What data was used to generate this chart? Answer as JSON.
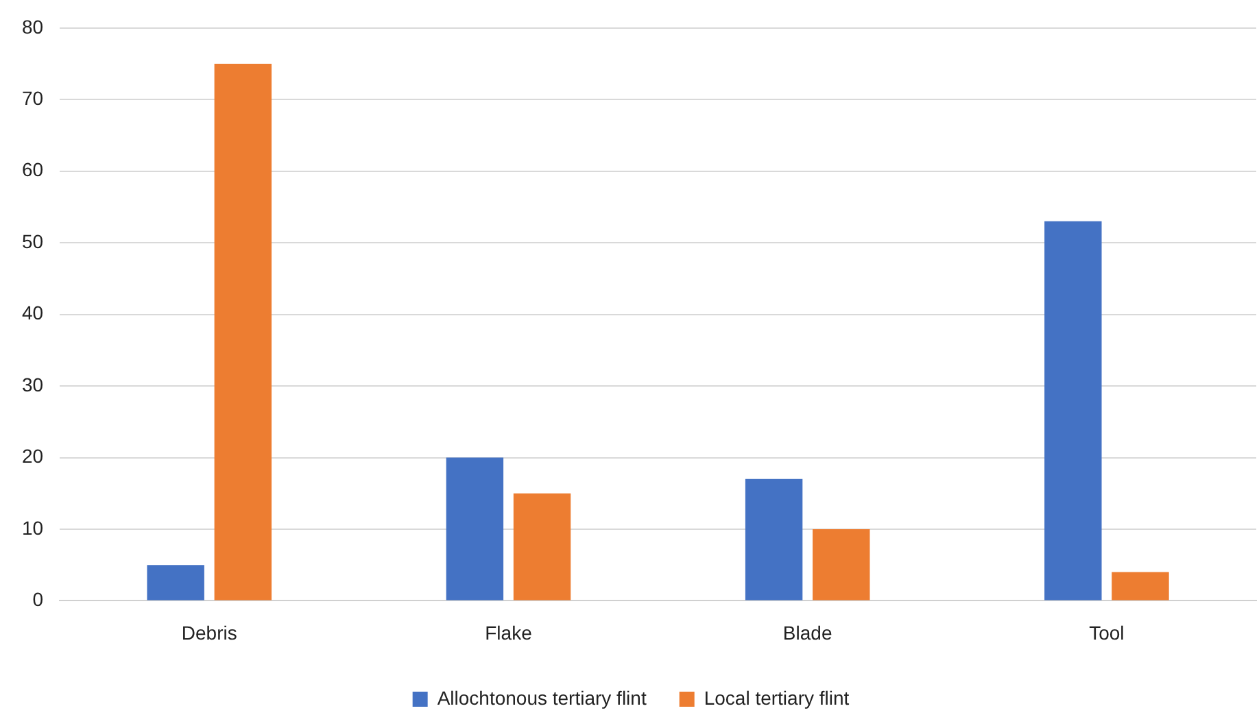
{
  "chart_data": {
    "type": "bar",
    "categories": [
      "Debris",
      "Flake",
      "Blade",
      "Tool"
    ],
    "series": [
      {
        "name": "Allochtonous tertiary flint",
        "color": "#4472c4",
        "values": [
          5,
          20,
          17,
          53
        ]
      },
      {
        "name": "Local tertiary flint",
        "color": "#ed7d31",
        "values": [
          75,
          15,
          10,
          4
        ]
      }
    ],
    "ylim": [
      0,
      80
    ],
    "yticks": [
      0,
      10,
      20,
      30,
      40,
      50,
      60,
      70,
      80
    ],
    "grid": "y",
    "legend": "bottom"
  }
}
